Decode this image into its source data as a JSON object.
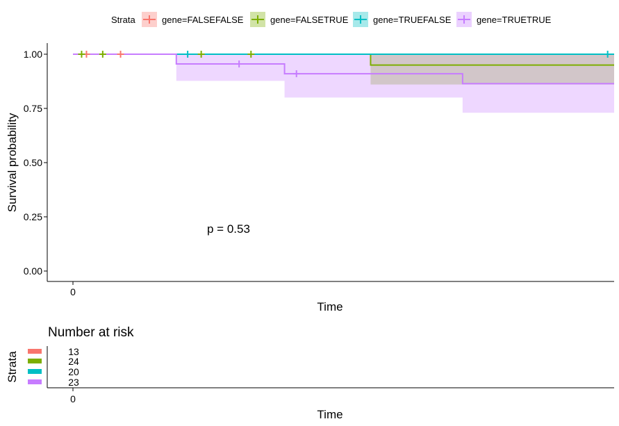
{
  "chart_data": [
    {
      "type": "line",
      "subtype": "kaplan-meier survival curve",
      "xlabel": "Time",
      "ylabel": "Survival probability",
      "x_ticks": [
        "0"
      ],
      "y_ticks": [
        1.0,
        0.75,
        0.5,
        0.25,
        0.0
      ],
      "y_tick_labels": [
        "1.00",
        "0.75",
        "0.50",
        "0.25",
        "0.00"
      ],
      "ylim": [
        0,
        1
      ],
      "xlim": [
        0,
        100
      ],
      "grid": false,
      "annotation": "p = 0.53",
      "legend": {
        "title": "Strata",
        "placement": "top",
        "entries": [
          "gene=FALSEFALSE",
          "gene=FALSETRUE",
          "gene=TRUEFALSE",
          "gene=TRUETRUE"
        ]
      },
      "series": [
        {
          "name": "gene=FALSEFALSE",
          "color": "#F8766D",
          "steps": [
            [
              0,
              1.0
            ],
            [
              100,
              1.0
            ]
          ],
          "censor_x": [
            2.5,
            8.8
          ],
          "ci": []
        },
        {
          "name": "gene=FALSETRUE",
          "color": "#7CAE00",
          "steps": [
            [
              0,
              1.0
            ],
            [
              55,
              0.95
            ],
            [
              100,
              0.95
            ]
          ],
          "censor_x": [
            1.6,
            5.5,
            23.7,
            32.9
          ],
          "ci": [
            [
              55,
              0.86,
              1.0
            ],
            [
              100,
              0.86,
              1.0
            ]
          ]
        },
        {
          "name": "gene=TRUEFALSE",
          "color": "#00BFC4",
          "steps": [
            [
              0,
              1.0
            ],
            [
              100,
              1.0
            ]
          ],
          "censor_x": [
            21.2,
            98.8
          ],
          "ci": []
        },
        {
          "name": "gene=TRUETRUE",
          "color": "#C77CFF",
          "steps": [
            [
              0,
              1.0
            ],
            [
              19.1,
              0.955
            ],
            [
              39.1,
              0.91
            ],
            [
              72,
              0.864
            ],
            [
              100,
              0.864
            ]
          ],
          "censor_x": [
            30.7,
            41.3
          ],
          "ci": [
            [
              19.1,
              0.877,
              1.0
            ],
            [
              39.1,
              0.8,
              1.0
            ],
            [
              72,
              0.73,
              1.0
            ],
            [
              100,
              0.73,
              1.0
            ]
          ]
        }
      ]
    },
    {
      "type": "table",
      "title": "Number at risk",
      "xlabel": "Time",
      "ylabel": "Strata",
      "x_ticks": [
        "0"
      ],
      "rows": [
        {
          "strata": "gene=FALSEFALSE",
          "color": "#F8766D",
          "values": [
            13
          ]
        },
        {
          "strata": "gene=FALSETRUE",
          "color": "#7CAE00",
          "values": [
            24
          ]
        },
        {
          "strata": "gene=TRUEFALSE",
          "color": "#00BFC4",
          "values": [
            20
          ]
        },
        {
          "strata": "gene=TRUETRUE",
          "color": "#C77CFF",
          "values": [
            23
          ]
        }
      ]
    }
  ]
}
